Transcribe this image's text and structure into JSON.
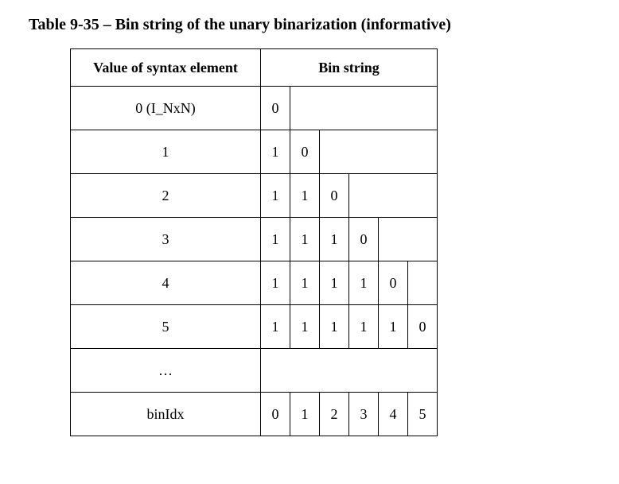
{
  "caption": "Table 9-35 – Bin string of the unary binarization (informative)",
  "columns": {
    "label_header": "Value of syntax element",
    "bin_header": "Bin string",
    "bin_count": 6
  },
  "rows": [
    {
      "label": "0 (I_NxN)",
      "bins": [
        "0",
        "",
        "",
        "",
        "",
        ""
      ]
    },
    {
      "label": "1",
      "bins": [
        "1",
        "0",
        "",
        "",
        "",
        ""
      ]
    },
    {
      "label": "2",
      "bins": [
        "1",
        "1",
        "0",
        "",
        "",
        ""
      ]
    },
    {
      "label": "3",
      "bins": [
        "1",
        "1",
        "1",
        "0",
        "",
        ""
      ]
    },
    {
      "label": "4",
      "bins": [
        "1",
        "1",
        "1",
        "1",
        "0",
        ""
      ]
    },
    {
      "label": "5",
      "bins": [
        "1",
        "1",
        "1",
        "1",
        "1",
        "0"
      ]
    },
    {
      "label": "…",
      "bins": [
        "",
        "",
        "",
        "",
        "",
        ""
      ]
    },
    {
      "label": "binIdx",
      "bins": [
        "0",
        "1",
        "2",
        "3",
        "4",
        "5"
      ]
    }
  ],
  "colors": {
    "text": "#000000",
    "background": "#ffffff",
    "border": "#000000"
  },
  "font": {
    "family": "Times New Roman",
    "caption_size_pt": 15,
    "cell_size_pt": 13
  }
}
